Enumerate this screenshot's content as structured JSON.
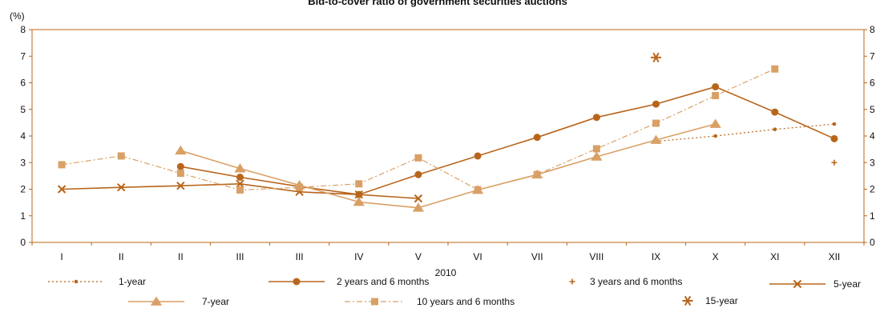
{
  "chart_data": {
    "type": "line",
    "title": "Bid-to-cover ratio of government securities auctions",
    "ylabel": "(%)",
    "xlabel": "2010",
    "ylim": [
      0,
      8
    ],
    "yticks": [
      0,
      1,
      2,
      3,
      4,
      5,
      6,
      7,
      8
    ],
    "categories": [
      "I",
      "II",
      "II",
      "III",
      "III",
      "IV",
      "V",
      "VI",
      "VII",
      "VIII",
      "IX",
      "X",
      "XI",
      "XII"
    ],
    "series": [
      {
        "name": "1-year",
        "color": "#b8651b",
        "style": "dotted",
        "marker": "circle-small",
        "values": [
          null,
          null,
          null,
          null,
          null,
          null,
          null,
          null,
          null,
          null,
          3.8,
          4.0,
          4.25,
          4.45
        ]
      },
      {
        "name": "2 years and 6 months",
        "color": "#b8651b",
        "style": "solid",
        "marker": "circle",
        "values": [
          null,
          null,
          2.85,
          2.45,
          2.1,
          1.8,
          2.55,
          3.25,
          3.95,
          4.7,
          5.2,
          5.85,
          4.9,
          3.9
        ]
      },
      {
        "name": "3 years and 6 months",
        "color": "#b8651b",
        "style": "none",
        "marker": "plus",
        "values": [
          null,
          null,
          null,
          null,
          null,
          null,
          null,
          null,
          null,
          null,
          null,
          null,
          null,
          3.0
        ]
      },
      {
        "name": "5-year",
        "color": "#b8651b",
        "style": "solid",
        "marker": "x",
        "values": [
          2.0,
          2.07,
          2.13,
          2.2,
          1.9,
          1.8,
          1.65,
          null,
          null,
          null,
          null,
          null,
          null,
          null
        ]
      },
      {
        "name": "7-year",
        "color": "#d9a066",
        "style": "solid",
        "marker": "triangle",
        "values": [
          null,
          null,
          3.45,
          2.78,
          2.15,
          1.52,
          1.3,
          1.97,
          2.55,
          3.22,
          3.85,
          4.45,
          null,
          null
        ]
      },
      {
        "name": "10 years and 6 months",
        "color": "#d9a066",
        "style": "dashdot",
        "marker": "square",
        "values": [
          2.92,
          3.25,
          2.6,
          1.97,
          2.07,
          2.2,
          3.18,
          1.98,
          2.55,
          3.52,
          4.48,
          5.52,
          6.52,
          null
        ]
      },
      {
        "name": "15-year",
        "color": "#b8651b",
        "style": "none",
        "marker": "asterisk",
        "values": [
          null,
          null,
          null,
          null,
          null,
          null,
          null,
          null,
          null,
          null,
          6.95,
          null,
          null,
          null
        ]
      }
    ]
  }
}
